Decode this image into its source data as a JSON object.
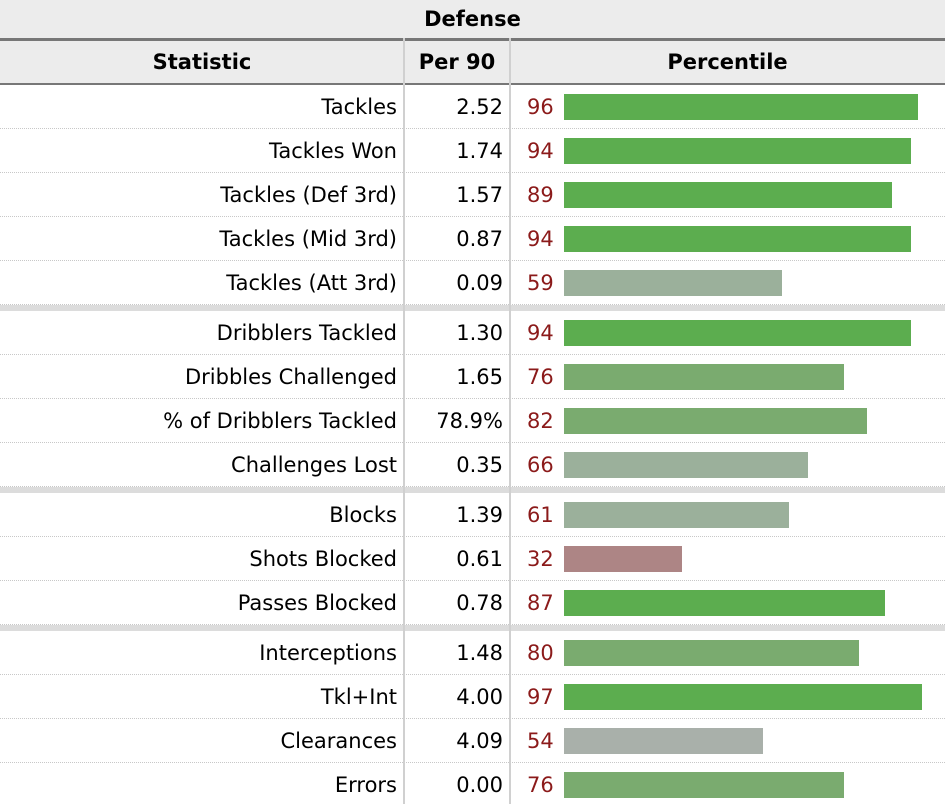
{
  "table": {
    "caption": "Defense",
    "headers": {
      "statistic": "Statistic",
      "per90": "Per 90",
      "percentile": "Percentile"
    },
    "bar_colors": {
      "high": "#5cad4f",
      "upper": "#7aab6f",
      "mid": "#9bb09b",
      "neutral": "#a9b0aa",
      "low": "#ad8585"
    },
    "groups": [
      [
        {
          "stat": "Tackles",
          "per90": "2.52",
          "percentile": 96
        },
        {
          "stat": "Tackles Won",
          "per90": "1.74",
          "percentile": 94
        },
        {
          "stat": "Tackles (Def 3rd)",
          "per90": "1.57",
          "percentile": 89
        },
        {
          "stat": "Tackles (Mid 3rd)",
          "per90": "0.87",
          "percentile": 94
        },
        {
          "stat": "Tackles (Att 3rd)",
          "per90": "0.09",
          "percentile": 59
        }
      ],
      [
        {
          "stat": "Dribblers Tackled",
          "per90": "1.30",
          "percentile": 94
        },
        {
          "stat": "Dribbles Challenged",
          "per90": "1.65",
          "percentile": 76
        },
        {
          "stat": "% of Dribblers Tackled",
          "per90": "78.9%",
          "percentile": 82
        },
        {
          "stat": "Challenges Lost",
          "per90": "0.35",
          "percentile": 66
        }
      ],
      [
        {
          "stat": "Blocks",
          "per90": "1.39",
          "percentile": 61
        },
        {
          "stat": "Shots Blocked",
          "per90": "0.61",
          "percentile": 32
        },
        {
          "stat": "Passes Blocked",
          "per90": "0.78",
          "percentile": 87
        }
      ],
      [
        {
          "stat": "Interceptions",
          "per90": "1.48",
          "percentile": 80
        },
        {
          "stat": "Tkl+Int",
          "per90": "4.00",
          "percentile": 97
        },
        {
          "stat": "Clearances",
          "per90": "4.09",
          "percentile": 54
        },
        {
          "stat": "Errors",
          "per90": "0.00",
          "percentile": 76
        }
      ]
    ]
  }
}
